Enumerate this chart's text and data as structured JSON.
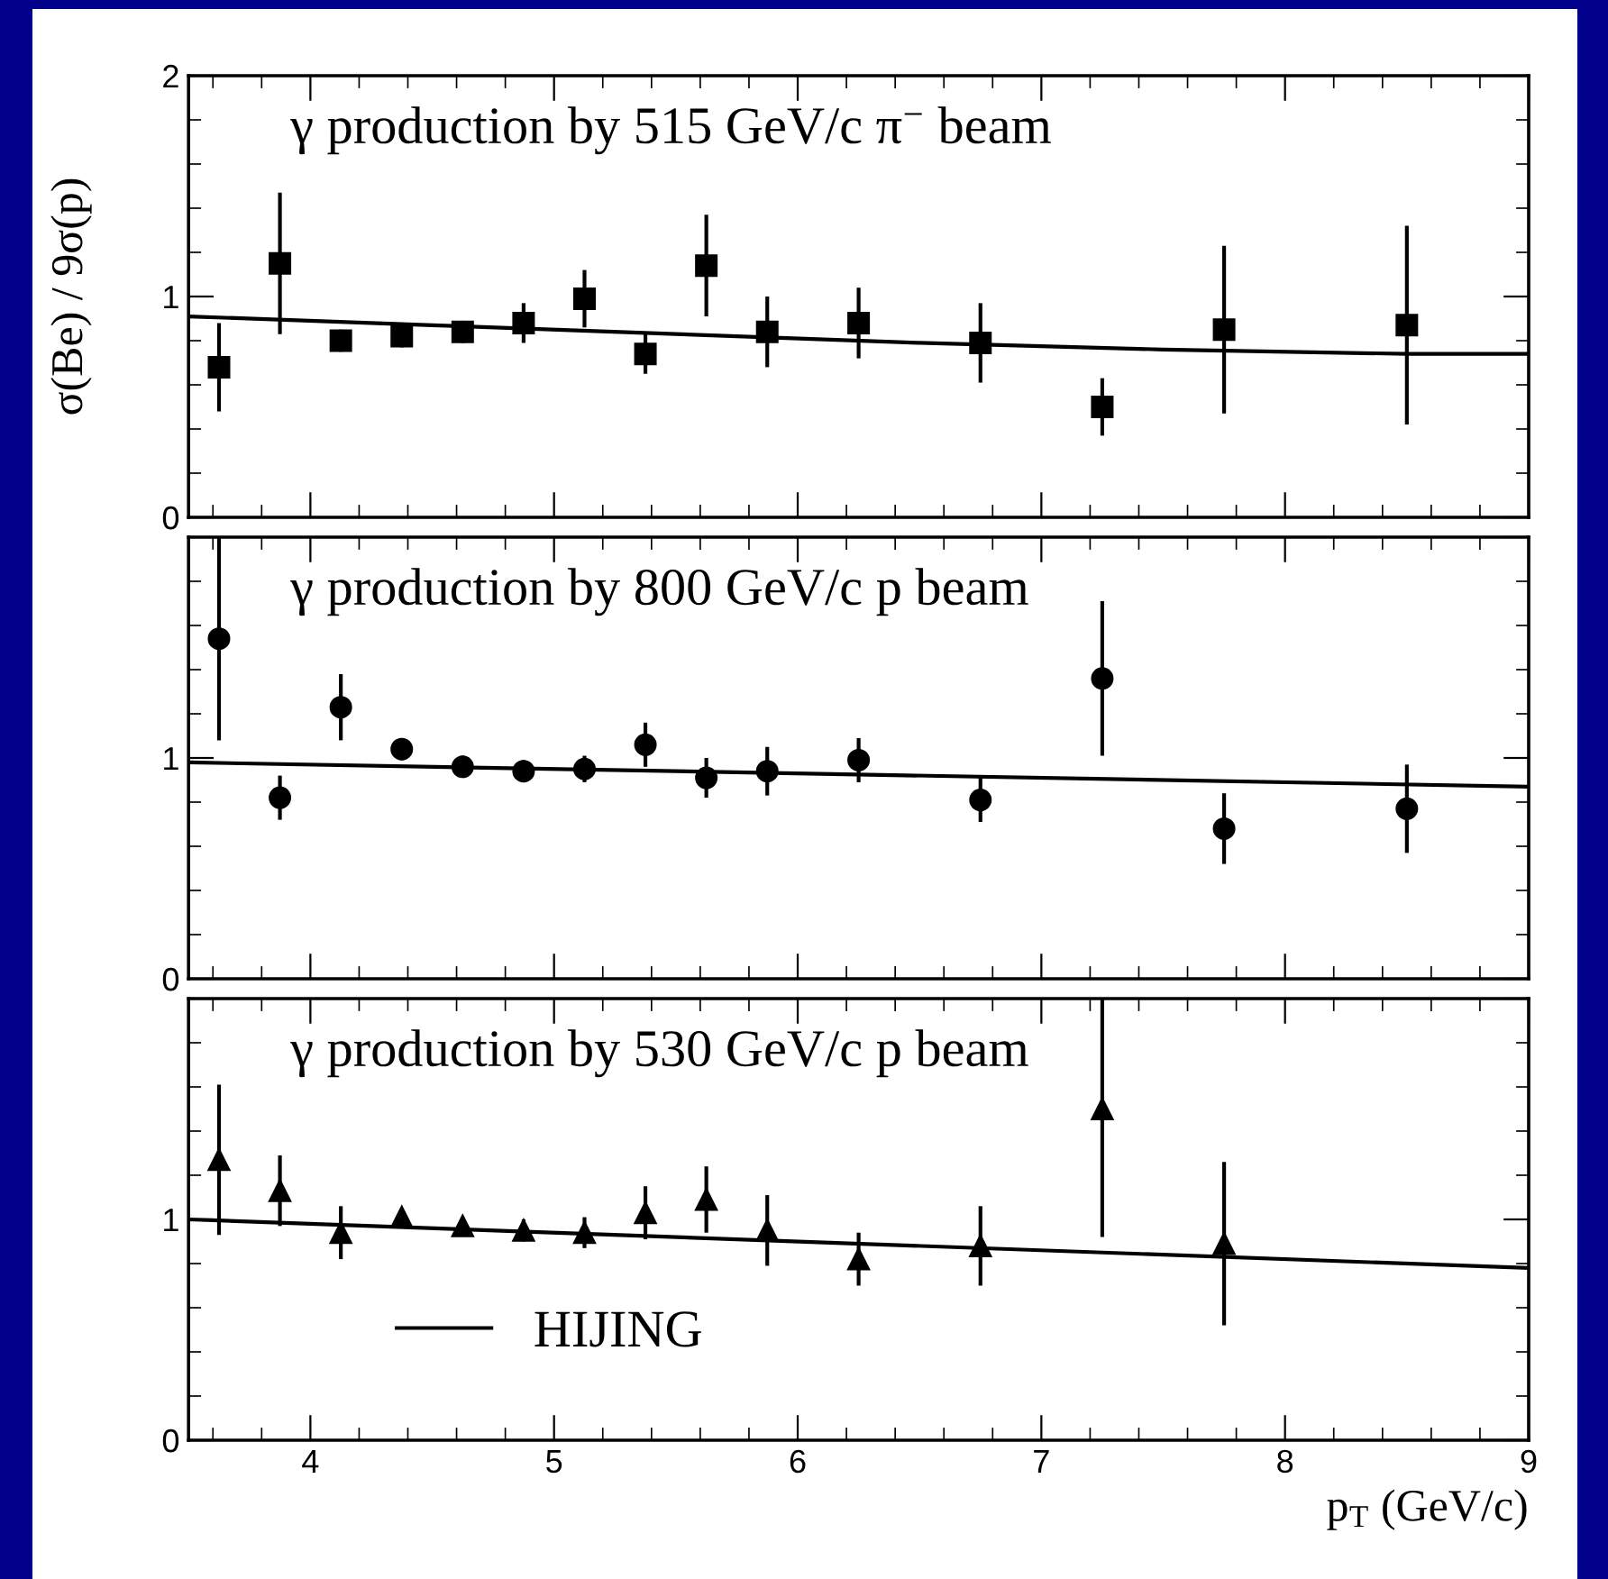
{
  "chart_data": [
    {
      "type": "scatter",
      "title": "γ production by 515 GeV/c π$^{−}$ beam",
      "ylabel": "σ(Be) / 9σ(p)",
      "xlim": [
        3.5,
        9
      ],
      "xticks": [
        4,
        5,
        6,
        7,
        8,
        9
      ],
      "ylim": [
        0,
        2
      ],
      "yticks": [
        0,
        1,
        2
      ],
      "tick_labels": "y",
      "grid": false,
      "legend": false,
      "x": [
        3.625,
        3.875,
        4.125,
        4.375,
        4.625,
        4.875,
        5.125,
        5.375,
        5.625,
        5.875,
        6.25,
        6.75,
        7.25,
        7.75,
        8.5
      ],
      "series": [
        {
          "marker": "square",
          "color": "#000000",
          "values": [
            0.68,
            1.15,
            0.8,
            0.82,
            0.84,
            0.88,
            0.99,
            0.74,
            1.14,
            0.84,
            0.88,
            0.79,
            0.5,
            0.85,
            0.87
          ],
          "errors": [
            0.2,
            0.32,
            0.05,
            0.05,
            0.05,
            0.09,
            0.13,
            0.09,
            0.23,
            0.16,
            0.16,
            0.18,
            0.13,
            0.38,
            0.45
          ]
        },
        {
          "type": "line",
          "line_style": "solid",
          "color": "#000000",
          "x": [
            3.5,
            4.5,
            5.5,
            6.5,
            7.5,
            8.5,
            9
          ],
          "values": [
            0.91,
            0.87,
            0.83,
            0.79,
            0.76,
            0.74,
            0.74
          ]
        }
      ]
    },
    {
      "type": "scatter",
      "title": "γ production by 800 GeV/c p beam",
      "xlim": [
        3.5,
        9
      ],
      "xticks": [
        4,
        5,
        6,
        7,
        8,
        9
      ],
      "ylim": [
        0,
        2
      ],
      "yticks": [
        0,
        1,
        {
          "value": 2,
          "label": null
        }
      ],
      "tick_labels": "y",
      "grid": false,
      "legend": false,
      "x": [
        3.625,
        3.875,
        4.125,
        4.375,
        4.625,
        4.875,
        5.125,
        5.375,
        5.625,
        5.875,
        6.25,
        6.75,
        7.25,
        7.75,
        8.5
      ],
      "series": [
        {
          "marker": "circle",
          "color": "#000000",
          "values": [
            1.54,
            0.82,
            1.23,
            1.04,
            0.96,
            0.94,
            0.95,
            1.06,
            0.91,
            0.94,
            0.99,
            0.81,
            1.36,
            0.68,
            0.77
          ],
          "errors": [
            0.46,
            0.1,
            0.15,
            0.05,
            0.05,
            0.05,
            0.06,
            0.1,
            0.09,
            0.11,
            0.1,
            0.1,
            0.35,
            0.16,
            0.2
          ]
        },
        {
          "type": "line",
          "line_style": "solid",
          "color": "#000000",
          "x": [
            3.5,
            9
          ],
          "values": [
            0.98,
            0.87
          ]
        }
      ]
    },
    {
      "type": "scatter",
      "title": "γ production by 530 GeV/c p beam",
      "xlabel": "p$_{T}$ (GeV/c)",
      "xlim": [
        3.5,
        9
      ],
      "xticks": [
        4,
        5,
        6,
        7,
        8,
        9
      ],
      "ylim": [
        0,
        2
      ],
      "yticks": [
        0,
        1,
        {
          "value": 2,
          "label": null
        }
      ],
      "grid": false,
      "legend": "bottom left",
      "series": [
        {
          "marker": "triangle",
          "color": "#000000",
          "x": [
            3.625,
            3.875,
            4.125,
            4.375,
            4.625,
            4.875,
            5.125,
            5.375,
            5.625,
            5.875,
            6.25,
            6.75,
            7.25,
            7.75
          ],
          "values": [
            1.27,
            1.13,
            0.94,
            1.01,
            0.97,
            0.95,
            0.94,
            1.03,
            1.09,
            0.95,
            0.82,
            0.88,
            1.5,
            0.89
          ],
          "errors": [
            0.34,
            0.16,
            0.12,
            0.03,
            0.04,
            0.05,
            0.07,
            0.12,
            0.15,
            0.16,
            0.12,
            0.18,
            [
              0.92,
              2.0
            ],
            0.37
          ]
        },
        {
          "type": "line",
          "name": "HIJING",
          "line_style": "solid",
          "color": "#000000",
          "x": [
            3.5,
            9
          ],
          "values": [
            1.0,
            0.78
          ]
        }
      ]
    }
  ]
}
